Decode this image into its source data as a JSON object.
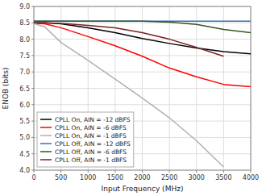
{
  "chart_data": {
    "type": "line",
    "xlabel": "Input Frequency (MHz)",
    "ylabel": "ENOB (bits)",
    "xlim": [
      0,
      4000
    ],
    "ylim": [
      4,
      9
    ],
    "xticks": [
      0,
      500,
      1000,
      1500,
      2000,
      2500,
      3000,
      3500,
      4000
    ],
    "yticks": [
      {
        "value": 4,
        "label": "4.0"
      },
      4.5,
      {
        "value": 5,
        "label": "5.0"
      },
      5.5,
      {
        "value": 6,
        "label": "6.0"
      },
      6.5,
      {
        "value": 7,
        "label": "7.0"
      },
      7.5,
      {
        "value": 8,
        "label": "8.0"
      },
      8.5,
      {
        "value": 9,
        "label": "9.0"
      }
    ],
    "grid": true,
    "legend": "lower left",
    "series": [
      {
        "name": "CPLL On, AIN = -12 dBFS",
        "color": "#000000",
        "x": [
          0,
          200,
          500,
          1000,
          1500,
          2000,
          2500,
          3000,
          3500,
          4000
        ],
        "values": [
          8.5,
          8.5,
          8.47,
          8.35,
          8.2,
          8.02,
          7.87,
          7.73,
          7.62,
          7.55
        ]
      },
      {
        "name": "CPLL On, AIN = -6 dBFS",
        "color": "#ff0000",
        "x": [
          0,
          200,
          500,
          1000,
          1500,
          2000,
          2500,
          3000,
          3500,
          4000
        ],
        "values": [
          8.48,
          8.47,
          8.35,
          8.08,
          7.8,
          7.48,
          7.12,
          6.85,
          6.62,
          6.55
        ]
      },
      {
        "name": "CPLL On, AIN = -1 dBFS",
        "color": "#b0b0b0",
        "x": [
          0,
          200,
          500,
          1000,
          1500,
          2000,
          2500,
          3000,
          3500
        ],
        "values": [
          8.48,
          8.38,
          7.9,
          7.35,
          6.78,
          6.2,
          5.6,
          4.9,
          4.1
        ]
      },
      {
        "name": "CPLL Off, AIN = -12 dBFS",
        "color": "#2e75b6",
        "x": [
          0,
          200,
          500,
          1000,
          1500,
          2000,
          2500,
          3000,
          3500,
          4000
        ],
        "values": [
          8.55,
          8.55,
          8.55,
          8.55,
          8.55,
          8.55,
          8.55,
          8.55,
          8.55,
          8.55
        ]
      },
      {
        "name": "CPLL Off, AIN = -6 dBFS",
        "color": "#375623",
        "x": [
          0,
          200,
          500,
          1000,
          1500,
          2000,
          2500,
          3000,
          3500,
          4000
        ],
        "values": [
          8.55,
          8.55,
          8.55,
          8.55,
          8.55,
          8.55,
          8.52,
          8.45,
          8.3,
          8.2
        ]
      },
      {
        "name": "CPLL Off, AIN = -1 dBFS",
        "color": "#7b2020",
        "x": [
          0,
          200,
          500,
          1000,
          1500,
          2000,
          2500,
          3000,
          3500
        ],
        "values": [
          8.5,
          8.5,
          8.48,
          8.42,
          8.35,
          8.2,
          8.0,
          7.75,
          7.48
        ]
      }
    ]
  }
}
